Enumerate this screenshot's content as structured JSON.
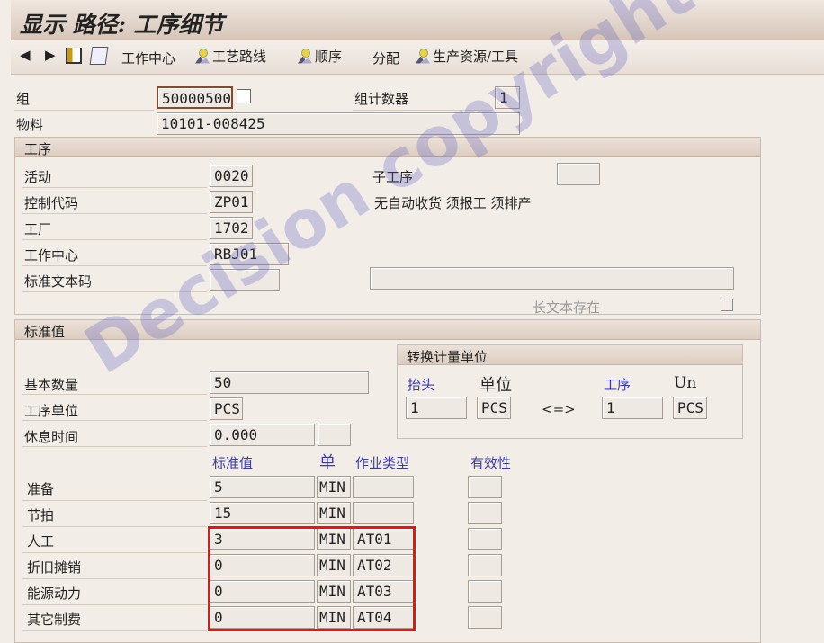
{
  "title": "显示 路径: 工序细节",
  "toolbar": {
    "back": "◀",
    "forward": "▶",
    "items": [
      "工作中心",
      "工艺路线",
      "顺序",
      "分配",
      "生产资源/工具"
    ]
  },
  "header": {
    "group_label": "组",
    "group_value": "50000500",
    "counter_label": "组计数器",
    "counter_value": "1",
    "material_label": "物料",
    "material_value": "10101-008425"
  },
  "operation": {
    "title": "工序",
    "activity_label": "活动",
    "activity": "0020",
    "control_key_label": "控制代码",
    "control_key": "ZP01",
    "plant_label": "工厂",
    "plant": "1702",
    "work_center_label": "工作中心",
    "work_center": "RBJ01",
    "std_text_label": "标准文本码",
    "std_text": "",
    "sub_op_label": "子工序",
    "sub_op": "",
    "control_desc": "无自动收货 须报工 须排产",
    "description": "",
    "long_text_label": "长文本存在",
    "long_text_exists": false
  },
  "std_values": {
    "title": "标准值",
    "base_qty_label": "基本数量",
    "base_qty": "50",
    "op_unit_label": "工序单位",
    "op_unit": "PCS",
    "break_label": "休息时间",
    "break_time": "0.000",
    "break_unit": "",
    "conv": {
      "title": "转换计量单位",
      "header_label": "抬头",
      "unit_label": "单位",
      "op_label": "工序",
      "un_label": "Un",
      "header_qty": "1",
      "header_unit": "PCS",
      "arrow": "<=>",
      "op_qty": "1",
      "op_unit": "PCS"
    },
    "col_value": "标准值",
    "col_unit": "单",
    "col_activity": "作业类型",
    "col_validity": "有效性",
    "rows": [
      {
        "label": "准备",
        "value": "5",
        "unit": "MIN",
        "activity": "",
        "validity": ""
      },
      {
        "label": "节拍",
        "value": "15",
        "unit": "MIN",
        "activity": "",
        "validity": ""
      },
      {
        "label": "人工",
        "value": "3",
        "unit": "MIN",
        "activity": "AT01",
        "validity": ""
      },
      {
        "label": "折旧摊销",
        "value": "0",
        "unit": "MIN",
        "activity": "AT02",
        "validity": ""
      },
      {
        "label": "能源动力",
        "value": "0",
        "unit": "MIN",
        "activity": "AT03",
        "validity": ""
      },
      {
        "label": "其它制费",
        "value": "0",
        "unit": "MIN",
        "activity": "AT04",
        "validity": ""
      }
    ]
  },
  "highlight_color": "#f01010",
  "watermark": "Decision copyright"
}
